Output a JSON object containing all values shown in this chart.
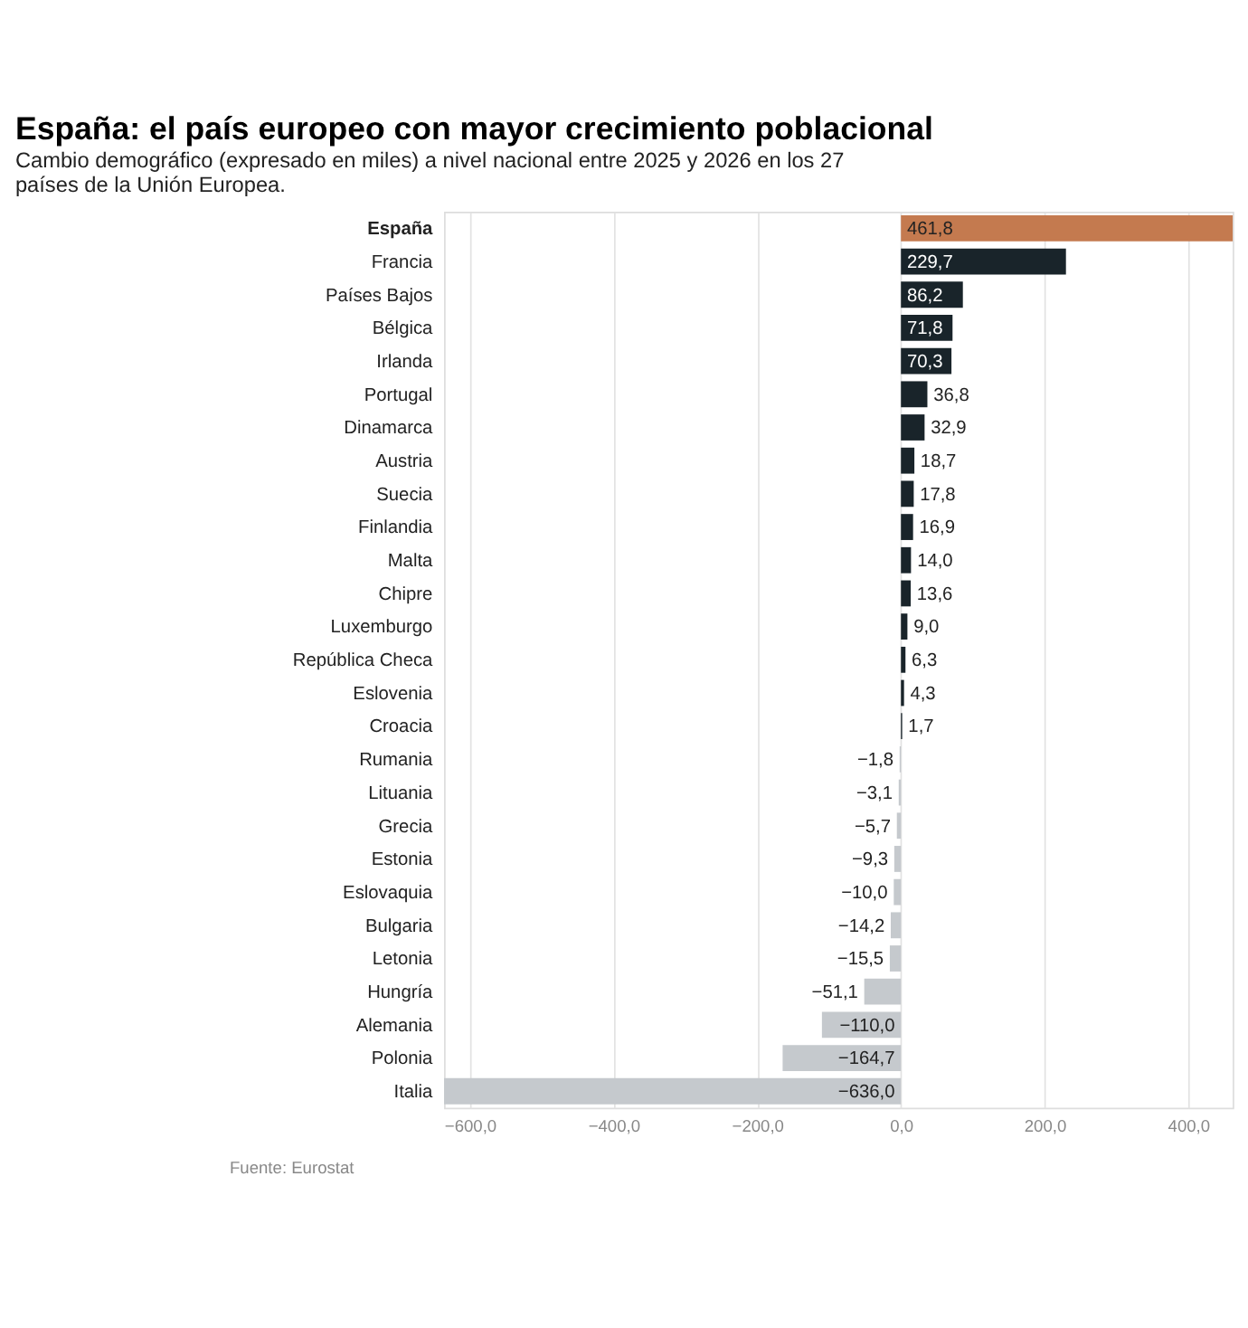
{
  "chart_data": {
    "type": "bar",
    "orientation": "horizontal",
    "title": "España: el país europeo con mayor crecimiento poblacional",
    "subtitle": "Cambio demográfico (expresado en miles) a nivel nacional entre 2025 y 2026 en los 27 países de la Unión Europea.",
    "categories": [
      "España",
      "Francia",
      "Países Bajos",
      "Bélgica",
      "Irlanda",
      "Portugal",
      "Dinamarca",
      "Austria",
      "Suecia",
      "Finlandia",
      "Malta",
      "Chipre",
      "Luxemburgo",
      "República Checa",
      "Eslovenia",
      "Croacia",
      "Rumania",
      "Lituania",
      "Grecia",
      "Estonia",
      "Eslovaquia",
      "Bulgaria",
      "Letonia",
      "Hungría",
      "Alemania",
      "Polonia",
      "Italia"
    ],
    "values": [
      461.8,
      229.7,
      86.2,
      71.8,
      70.3,
      36.8,
      32.9,
      18.7,
      17.8,
      16.9,
      14.0,
      13.6,
      9.0,
      6.3,
      4.3,
      1.7,
      -1.8,
      -3.1,
      -5.7,
      -9.3,
      -10.0,
      -14.2,
      -15.5,
      -51.1,
      -110.0,
      -164.7,
      -636.0
    ],
    "value_labels": [
      "461,8",
      "229,7",
      "86,2",
      "71,8",
      "70,3",
      "36,8",
      "32,9",
      "18,7",
      "17,8",
      "16,9",
      "14,0",
      "13,6",
      "9,0",
      "6,3",
      "4,3",
      "1,7",
      "−1,8",
      "−3,1",
      "−5,7",
      "−9,3",
      "−10,0",
      "−14,2",
      "−15,5",
      "−51,1",
      "−110,0",
      "−164,7",
      "−636,0"
    ],
    "colors": [
      "#c47a4f",
      "#19242a",
      "#19242a",
      "#19242a",
      "#19242a",
      "#19242a",
      "#19242a",
      "#19242a",
      "#19242a",
      "#19242a",
      "#19242a",
      "#19242a",
      "#19242a",
      "#19242a",
      "#19242a",
      "#19242a",
      "#c5c9cd",
      "#c5c9cd",
      "#c5c9cd",
      "#c5c9cd",
      "#c5c9cd",
      "#c5c9cd",
      "#c5c9cd",
      "#c5c9cd",
      "#c5c9cd",
      "#c5c9cd",
      "#c5c9cd"
    ],
    "xlim": [
      -636,
      461.8
    ],
    "xticks": [
      {
        "value": -600,
        "label": "−600,0"
      },
      {
        "value": -400,
        "label": "−400,0"
      },
      {
        "value": -200,
        "label": "−200,0"
      },
      {
        "value": 0,
        "label": "0,0"
      },
      {
        "value": 200,
        "label": "200,0"
      },
      {
        "value": 400,
        "label": "400,0"
      }
    ],
    "grid": "x",
    "annotations": [
      "Fuente: Eurostat"
    ]
  }
}
